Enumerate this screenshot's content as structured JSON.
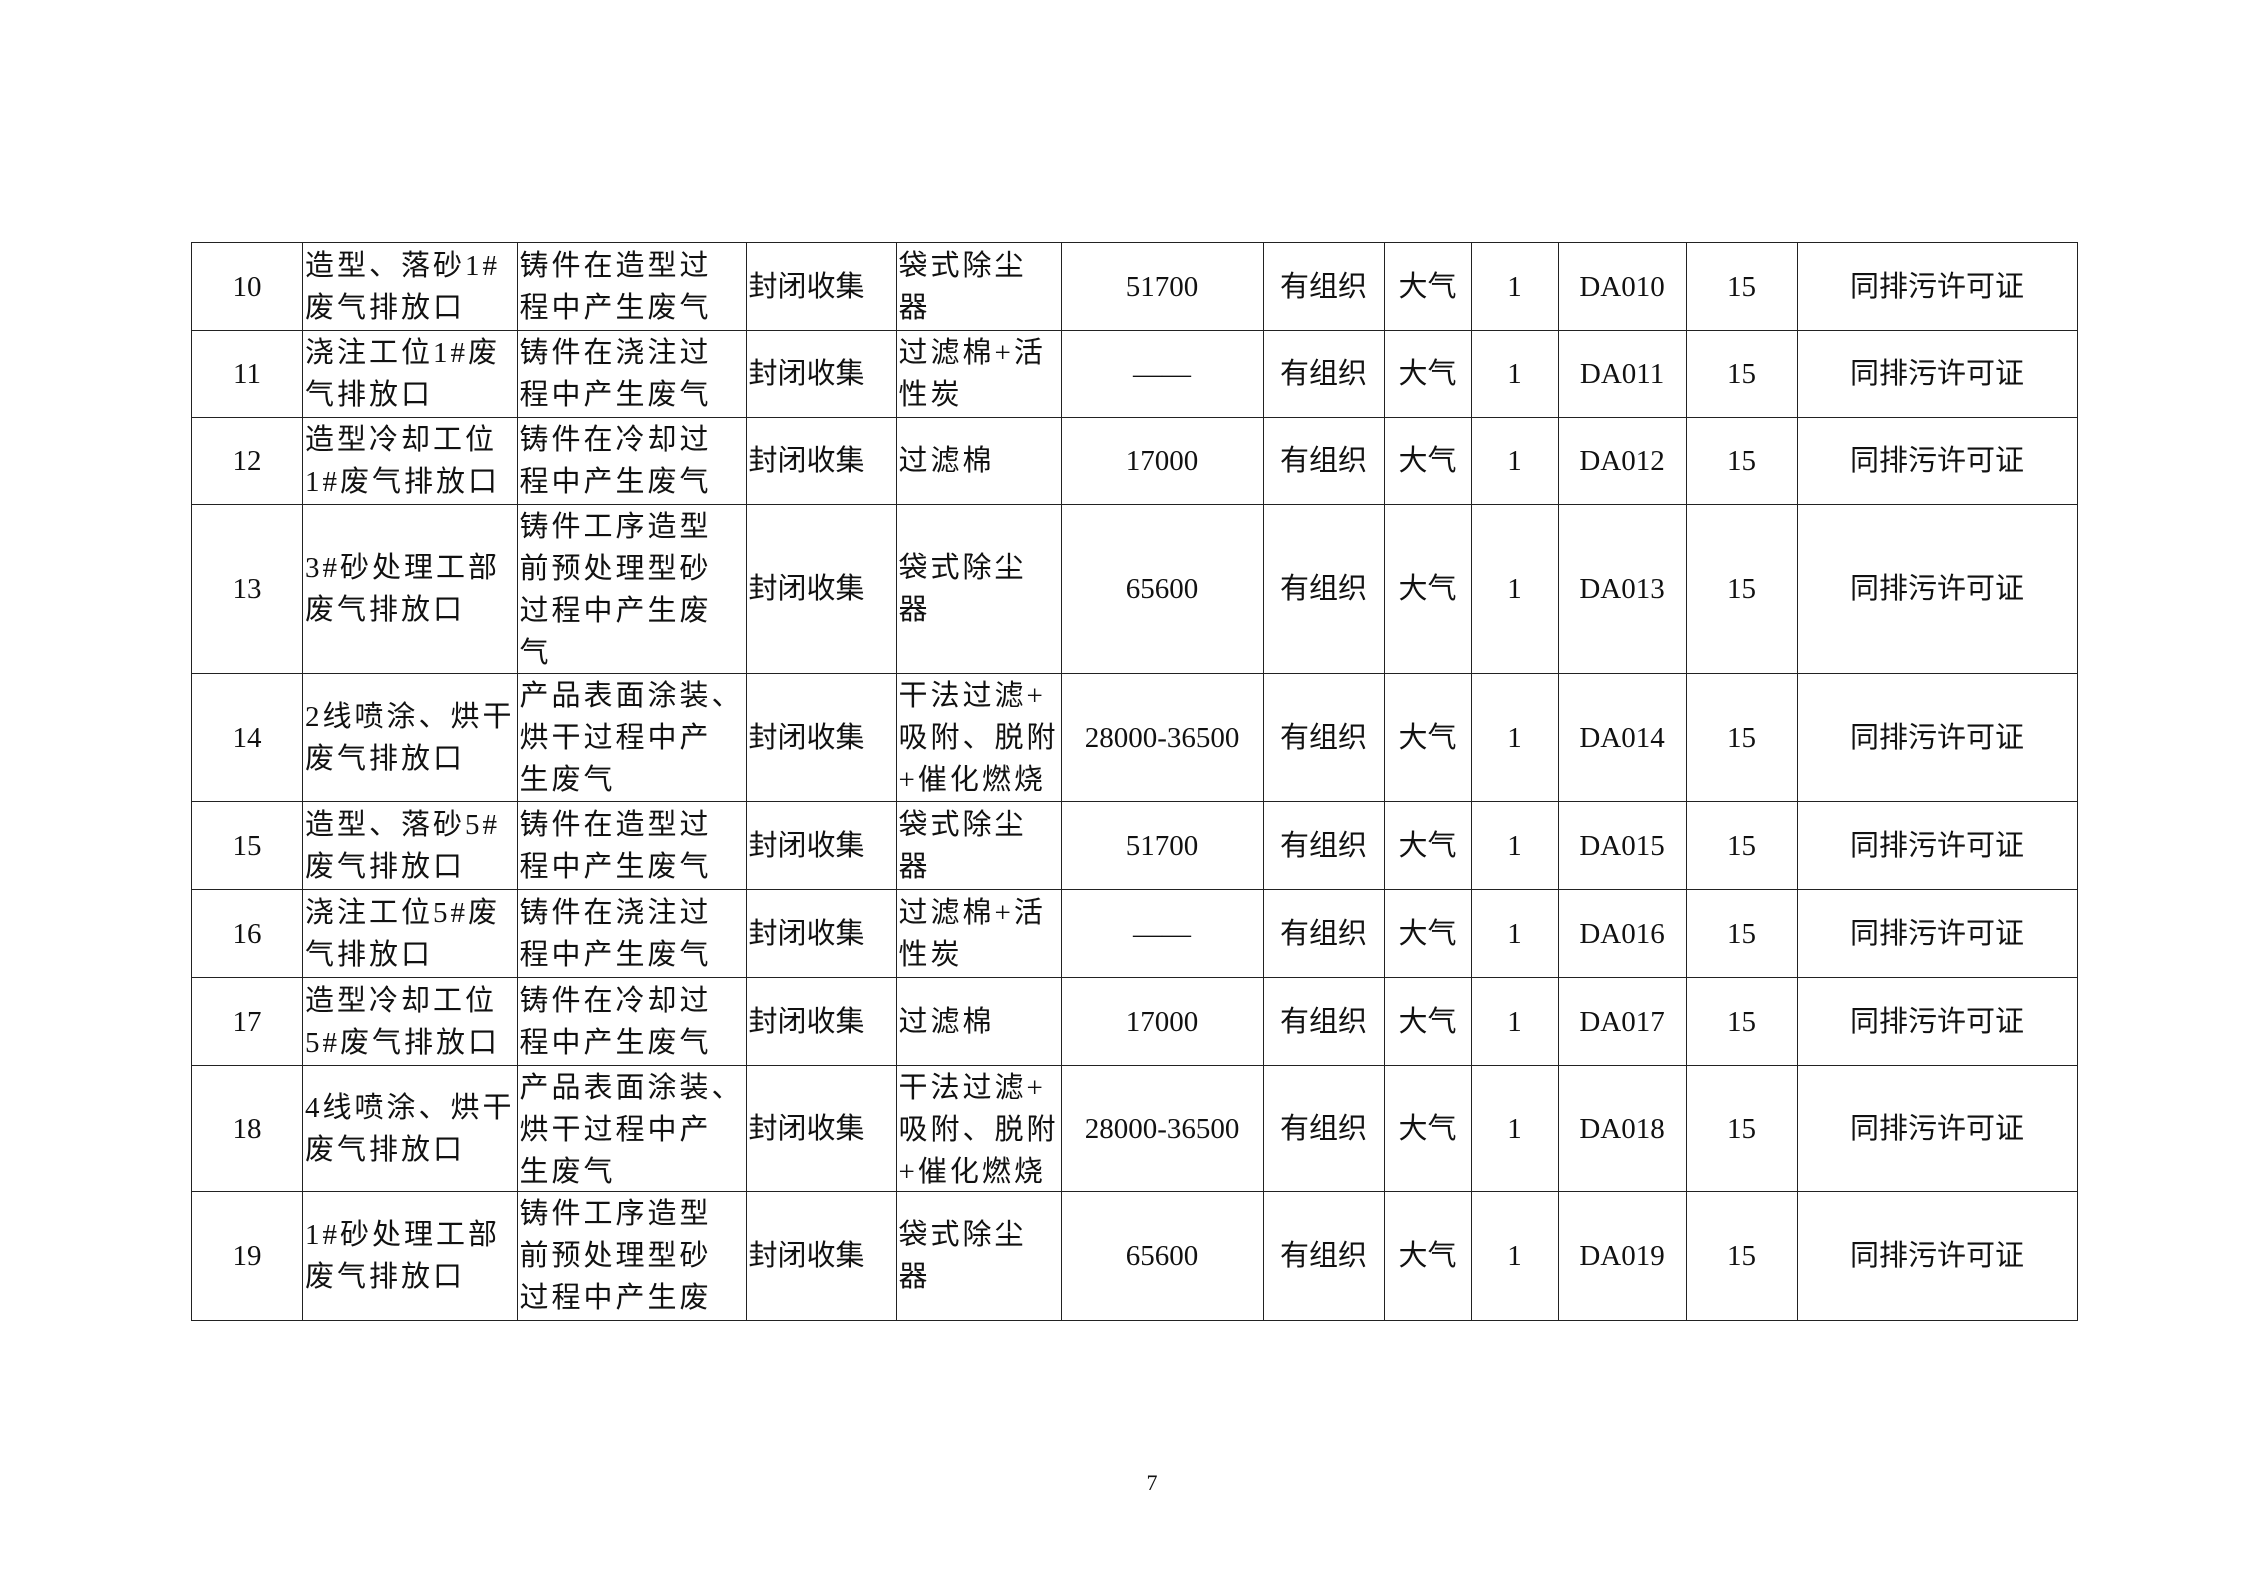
{
  "table": {
    "rows": [
      {
        "no": "10",
        "name": [
          "造型、落砂1#",
          "废气排放口"
        ],
        "source": [
          "铸件在造型过",
          "程中产生废气"
        ],
        "collect": "封闭收集",
        "treat": [
          "袋式除尘",
          "器"
        ],
        "flow": "51700",
        "type": "有组织",
        "dest": "大气",
        "count": "1",
        "code": "DA010",
        "height": "15",
        "note": "同排污许可证"
      },
      {
        "no": "11",
        "name": [
          "浇注工位1#废",
          "气排放口"
        ],
        "source": [
          "铸件在浇注过",
          "程中产生废气"
        ],
        "collect": "封闭收集",
        "treat": [
          "过滤棉+活",
          "性炭"
        ],
        "flow": "——",
        "type": "有组织",
        "dest": "大气",
        "count": "1",
        "code": "DA011",
        "height": "15",
        "note": "同排污许可证"
      },
      {
        "no": "12",
        "name": [
          "造型冷却工位",
          "1#废气排放口"
        ],
        "source": [
          "铸件在冷却过",
          "程中产生废气"
        ],
        "collect": "封闭收集",
        "treat": [
          "过滤棉"
        ],
        "flow": "17000",
        "type": "有组织",
        "dest": "大气",
        "count": "1",
        "code": "DA012",
        "height": "15",
        "note": "同排污许可证"
      },
      {
        "no": "13",
        "name": [
          "3#砂处理工部",
          "废气排放口"
        ],
        "source": [
          "铸件工序造型",
          "前预处理型砂",
          "过程中产生废",
          "气"
        ],
        "collect": "封闭收集",
        "treat": [
          "袋式除尘",
          "器"
        ],
        "flow": "65600",
        "type": "有组织",
        "dest": "大气",
        "count": "1",
        "code": "DA013",
        "height": "15",
        "note": "同排污许可证"
      },
      {
        "no": "14",
        "name": [
          "2线喷涂、烘干",
          "废气排放口"
        ],
        "source": [
          "产品表面涂装、",
          "烘干过程中产",
          "生废气"
        ],
        "collect": "封闭收集",
        "treat": [
          "干法过滤+",
          "吸附、脱附",
          "+催化燃烧"
        ],
        "flow": "28000-36500",
        "type": "有组织",
        "dest": "大气",
        "count": "1",
        "code": "DA014",
        "height": "15",
        "note": "同排污许可证"
      },
      {
        "no": "15",
        "name": [
          "造型、落砂5#",
          "废气排放口"
        ],
        "source": [
          "铸件在造型过",
          "程中产生废气"
        ],
        "collect": "封闭收集",
        "treat": [
          "袋式除尘",
          "器"
        ],
        "flow": "51700",
        "type": "有组织",
        "dest": "大气",
        "count": "1",
        "code": "DA015",
        "height": "15",
        "note": "同排污许可证"
      },
      {
        "no": "16",
        "name": [
          "浇注工位5#废",
          "气排放口"
        ],
        "source": [
          "铸件在浇注过",
          "程中产生废气"
        ],
        "collect": "封闭收集",
        "treat": [
          "过滤棉+活",
          "性炭"
        ],
        "flow": "——",
        "type": "有组织",
        "dest": "大气",
        "count": "1",
        "code": "DA016",
        "height": "15",
        "note": "同排污许可证"
      },
      {
        "no": "17",
        "name": [
          "造型冷却工位",
          "5#废气排放口"
        ],
        "source": [
          "铸件在冷却过",
          "程中产生废气"
        ],
        "collect": "封闭收集",
        "treat": [
          "过滤棉"
        ],
        "flow": "17000",
        "type": "有组织",
        "dest": "大气",
        "count": "1",
        "code": "DA017",
        "height": "15",
        "note": "同排污许可证"
      },
      {
        "no": "18",
        "name": [
          "4线喷涂、烘干",
          "废气排放口"
        ],
        "source": [
          "产品表面涂装、",
          "烘干过程中产",
          "生废气"
        ],
        "collect": "封闭收集",
        "treat": [
          "干法过滤+",
          "吸附、脱附",
          "+催化燃烧"
        ],
        "flow": "28000-36500",
        "type": "有组织",
        "dest": "大气",
        "count": "1",
        "code": "DA018",
        "height": "15",
        "note": "同排污许可证"
      },
      {
        "no": "19",
        "name": [
          "1#砂处理工部",
          "废气排放口"
        ],
        "source": [
          "铸件工序造型",
          "前预处理型砂",
          "过程中产生废"
        ],
        "collect": "封闭收集",
        "treat": [
          "袋式除尘",
          "器"
        ],
        "flow": "65600",
        "type": "有组织",
        "dest": "大气",
        "count": "1",
        "code": "DA019",
        "height": "15",
        "note": "同排污许可证"
      }
    ]
  },
  "page_number": "7"
}
